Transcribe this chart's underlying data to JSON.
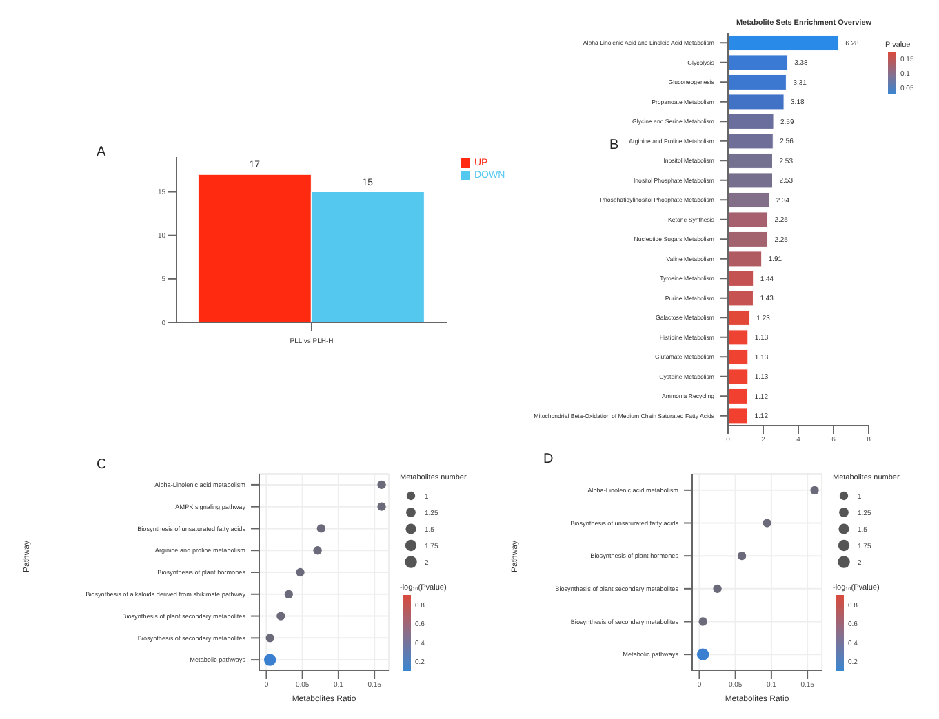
{
  "chart_data": [
    {
      "type": "bar",
      "annotations": [
        "A"
      ],
      "categories": [
        "PLL vs PLH-H"
      ],
      "series": [
        {
          "name": "UP",
          "color": "#ff2a10",
          "values": [
            17
          ]
        },
        {
          "name": "DOWN",
          "color": "#55c8f0",
          "values": [
            15
          ]
        }
      ],
      "ylim": [
        0,
        19
      ],
      "yticks": [
        0,
        5,
        10,
        15
      ],
      "data_labels": true,
      "legend": "top right"
    },
    {
      "type": "bar",
      "orientation": "horizontal",
      "title": "Metabolite Sets Enrichment Overview",
      "annotations": [
        "B"
      ],
      "categories": [
        "Alpha Linolenic Acid and Linoleic Acid Metabolism",
        "Glycolysis",
        "Gluconeogenesis",
        "Propanoate Metabolism",
        "Glycine and Serine Metabolism",
        "Arginine and Proline Metabolism",
        "Inositol Metabolism",
        "Inositol Phosphate Metabolism",
        "Phosphatidylinositol Phosphate Metabolism",
        "Ketone Synthesis",
        "Nucleotide Sugars Metabolism",
        "Valine Metabolism",
        "Tyrosine Metabolism",
        "Purine Metabolism",
        "Galactose Metabolism",
        "Histidine Metabolism",
        "Glutamate Metabolism",
        "Cysteine Metabolism",
        "Ammonia Recycling",
        "Mitochondrial Beta-Oxidation of Medium Chain Saturated Fatty Acids"
      ],
      "values": [
        6.28,
        3.38,
        3.31,
        3.18,
        2.59,
        2.56,
        2.53,
        2.53,
        2.34,
        2.25,
        2.25,
        1.91,
        1.44,
        1.43,
        1.23,
        1.13,
        1.13,
        1.13,
        1.12,
        1.12
      ],
      "colors": [
        "#2a8ae8",
        "#3a7ad4",
        "#3c78d0",
        "#4272c6",
        "#6a6e9c",
        "#6e6e98",
        "#747090",
        "#76708e",
        "#826e88",
        "#a6606e",
        "#a2626e",
        "#b05a62",
        "#c45252",
        "#c65252",
        "#e24838",
        "#ee4232",
        "#f04230",
        "#f04230",
        "#f24030",
        "#f24030"
      ],
      "xlim": [
        0,
        8
      ],
      "xticks": [
        0,
        2,
        4,
        6,
        8
      ],
      "data_labels": true,
      "clabel": "P value",
      "clim": [
        0.03,
        0.17
      ],
      "cticks": [
        0.15,
        0.1,
        0.05
      ]
    },
    {
      "type": "bubble",
      "orientation": "horizontal",
      "annotations": [
        "C"
      ],
      "xlabel": "Metabolites Ratio",
      "ylabel": "Pathway",
      "categories": [
        "Alpha-Linolenic acid metabolism",
        "AMPK signaling pathway",
        "Biosynthesis of unsaturated fatty acids",
        "Arginine and proline metabolism",
        "Biosynthesis of plant hormones",
        "Biosynthesis of alkaloids derived from shikimate pathway",
        "Biosynthesis of plant secondary metabolites",
        "Biosynthesis of secondary metabolites",
        "Metabolic pathways"
      ],
      "values": [
        0.16,
        0.16,
        0.076,
        0.071,
        0.047,
        0.031,
        0.02,
        0.005,
        0.005
      ],
      "sizes": [
        1,
        1,
        1,
        1,
        1,
        1,
        1,
        1,
        2
      ],
      "colors": [
        "#6a6a7a",
        "#6a6a7a",
        "#6a6a7a",
        "#6a6a7a",
        "#6a6a7a",
        "#6a6a7a",
        "#6a6a7a",
        "#6a6a7a",
        "#3a7fd0"
      ],
      "size_legend": [
        1,
        1.25,
        1.5,
        1.75,
        2
      ],
      "legend_title": "Metabolites number",
      "clabel": "-log₁₀(Pvalue)",
      "clim": [
        0.1,
        0.9
      ],
      "cticks": [
        0.8,
        0.6,
        0.4,
        0.2
      ],
      "xlim": [
        -0.01,
        0.17
      ],
      "xticks": [
        0,
        0.05,
        0.1,
        0.15
      ],
      "grid": true
    },
    {
      "type": "bubble",
      "orientation": "horizontal",
      "annotations": [
        "D"
      ],
      "xlabel": "Metabolites Ratio",
      "ylabel": "Pathway",
      "categories": [
        "Alpha-Linolenic acid metabolism",
        "Biosynthesis of unsaturated fatty acids",
        "Biosynthesis of plant hormones",
        "Biosynthesis of plant secondary metabolites",
        "Biosynthesis of secondary metabolites",
        "Metabolic pathways"
      ],
      "values": [
        0.16,
        0.094,
        0.059,
        0.025,
        0.005,
        0.005
      ],
      "sizes": [
        1,
        1,
        1,
        1,
        1,
        2
      ],
      "colors": [
        "#6a6a7a",
        "#6a6a7a",
        "#6a6a7a",
        "#6a6a7a",
        "#6a6a7a",
        "#3a7fd0"
      ],
      "size_legend": [
        1,
        1.25,
        1.5,
        1.75,
        2
      ],
      "legend_title": "Metabolites number",
      "clabel": "-log₁₀(Pvalue)",
      "clim": [
        0.1,
        0.9
      ],
      "cticks": [
        0.8,
        0.6,
        0.4,
        0.2
      ],
      "xlim": [
        -0.01,
        0.17
      ],
      "xticks": [
        0,
        0.05,
        0.1,
        0.15
      ],
      "grid": true
    }
  ]
}
